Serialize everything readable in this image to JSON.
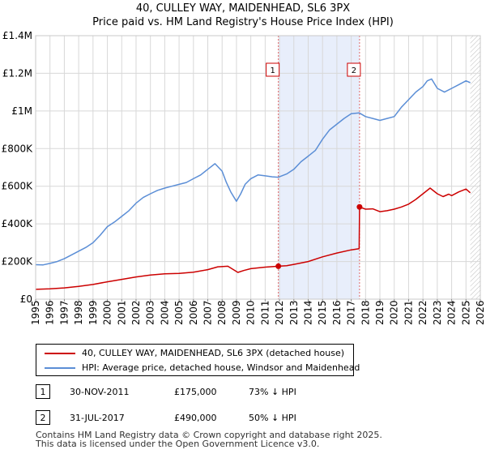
{
  "title": "40, CULLEY WAY, MAIDENHEAD, SL6 3PX",
  "subtitle": "Price paid vs. HM Land Registry's House Price Index (HPI)",
  "chart_data": {
    "type": "line",
    "title": "40, CULLEY WAY, MAIDENHEAD, SL6 3PX",
    "subtitle": "Price paid vs. HM Land Registry's House Price Index (HPI)",
    "xlim": [
      1995,
      2026
    ],
    "ylim": [
      0,
      1400000
    ],
    "y_ticks": [
      {
        "value": 0,
        "label": "£0"
      },
      {
        "value": 200000,
        "label": "£200K"
      },
      {
        "value": 400000,
        "label": "£400K"
      },
      {
        "value": 600000,
        "label": "£600K"
      },
      {
        "value": 800000,
        "label": "£800K"
      },
      {
        "value": 1000000,
        "label": "£1M"
      },
      {
        "value": 1200000,
        "label": "£1.2M"
      },
      {
        "value": 1400000,
        "label": "£1.4M"
      }
    ],
    "x_ticks": [
      "1995",
      "1996",
      "1997",
      "1998",
      "1999",
      "2000",
      "2001",
      "2002",
      "2003",
      "2004",
      "2005",
      "2006",
      "2007",
      "2008",
      "2009",
      "2010",
      "2011",
      "2012",
      "2013",
      "2014",
      "2015",
      "2016",
      "2017",
      "2018",
      "2019",
      "2020",
      "2021",
      "2022",
      "2023",
      "2024",
      "2025",
      "2026"
    ],
    "grid": true,
    "series": [
      {
        "name": "40, CULLEY WAY, MAIDENHEAD, SL6 3PX (detached house)",
        "color": "#cc0000",
        "x": [
          1995.0,
          1996.0,
          1997.0,
          1998.0,
          1999.0,
          2000.0,
          2001.0,
          2002.0,
          2003.0,
          2004.0,
          2005.0,
          2006.0,
          2007.0,
          2007.7,
          2008.4,
          2009.1,
          2009.5,
          2010.0,
          2011.0,
          2011.92,
          2012.5,
          2013.0,
          2014.0,
          2015.0,
          2016.0,
          2017.0,
          2017.55,
          2017.58,
          2018.0,
          2018.5,
          2019.0,
          2019.5,
          2020.0,
          2020.5,
          2021.0,
          2021.5,
          2022.0,
          2022.5,
          2023.0,
          2023.4,
          2023.8,
          2024.0,
          2024.5,
          2025.0,
          2025.3
        ],
        "values": [
          52000,
          55000,
          60000,
          68000,
          78000,
          92000,
          105000,
          118000,
          128000,
          135000,
          137000,
          143000,
          157000,
          172000,
          175000,
          142000,
          152000,
          162000,
          170000,
          175000,
          178000,
          185000,
          200000,
          225000,
          245000,
          262000,
          268000,
          490000,
          478000,
          480000,
          465000,
          470000,
          478000,
          490000,
          505000,
          530000,
          560000,
          590000,
          560000,
          545000,
          558000,
          550000,
          570000,
          585000,
          565000
        ]
      },
      {
        "name": "HPI: Average price, detached house, Windsor and Maidenhead",
        "color": "#5b8ed6",
        "x": [
          1995.0,
          1995.5,
          1996.0,
          1996.5,
          1997.0,
          1997.5,
          1998.0,
          1998.5,
          1999.0,
          1999.5,
          2000.0,
          2000.5,
          2001.0,
          2001.5,
          2002.0,
          2002.5,
          2003.0,
          2003.5,
          2004.0,
          2004.5,
          2005.0,
          2005.5,
          2006.0,
          2006.5,
          2007.0,
          2007.5,
          2008.0,
          2008.3,
          2008.6,
          2009.0,
          2009.3,
          2009.6,
          2010.0,
          2010.5,
          2011.0,
          2011.5,
          2011.92,
          2012.5,
          2013.0,
          2013.5,
          2014.0,
          2014.5,
          2015.0,
          2015.5,
          2016.0,
          2016.5,
          2017.0,
          2017.55,
          2018.0,
          2018.5,
          2019.0,
          2019.5,
          2020.0,
          2020.5,
          2021.0,
          2021.5,
          2022.0,
          2022.3,
          2022.6,
          2023.0,
          2023.5,
          2024.0,
          2024.5,
          2025.0,
          2025.3
        ],
        "values": [
          183000,
          182000,
          190000,
          200000,
          215000,
          235000,
          255000,
          275000,
          300000,
          340000,
          385000,
          410000,
          440000,
          470000,
          510000,
          540000,
          560000,
          578000,
          590000,
          600000,
          610000,
          620000,
          640000,
          660000,
          690000,
          720000,
          680000,
          620000,
          570000,
          520000,
          560000,
          610000,
          640000,
          660000,
          655000,
          650000,
          648000,
          665000,
          690000,
          730000,
          760000,
          790000,
          850000,
          900000,
          930000,
          960000,
          985000,
          990000,
          970000,
          960000,
          950000,
          960000,
          970000,
          1020000,
          1060000,
          1100000,
          1130000,
          1160000,
          1170000,
          1120000,
          1100000,
          1120000,
          1140000,
          1160000,
          1150000
        ]
      }
    ],
    "markers": [
      {
        "label": "1",
        "x": 2011.92,
        "value": 175000,
        "series": 0
      },
      {
        "label": "2",
        "x": 2017.58,
        "value": 490000,
        "series": 0
      }
    ],
    "shaded_regions": [
      {
        "from": 2011.92,
        "to": 2017.58,
        "color": "#e8eefb"
      },
      {
        "from": 2025.3,
        "to": 2026.0,
        "color": "#eeeeee",
        "hatched": true
      }
    ]
  },
  "legend": {
    "items": [
      {
        "label": "40, CULLEY WAY, MAIDENHEAD, SL6 3PX (detached house)",
        "color": "#cc0000"
      },
      {
        "label": "HPI: Average price, detached house, Windsor and Maidenhead",
        "color": "#5b8ed6"
      }
    ]
  },
  "sales": [
    {
      "num": "1",
      "date": "30-NOV-2011",
      "price": "£175,000",
      "hpi": "73% ↓ HPI"
    },
    {
      "num": "2",
      "date": "31-JUL-2017",
      "price": "£490,000",
      "hpi": "50% ↓ HPI"
    }
  ],
  "footer": {
    "line1": "Contains HM Land Registry data © Crown copyright and database right 2025.",
    "line2": "This data is licensed under the Open Government Licence v3.0."
  }
}
